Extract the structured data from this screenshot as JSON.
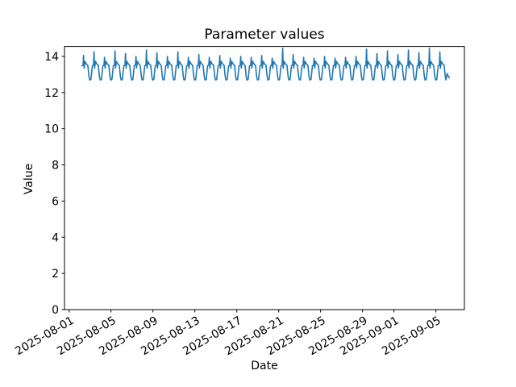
{
  "chart_data": {
    "type": "line",
    "title": "Parameter values",
    "xlabel": "Date",
    "ylabel": "Value",
    "legend": null,
    "grid": false,
    "line_color": "#1f77b4",
    "axis_color": "#000000",
    "background_color": "#ffffff",
    "ylim": [
      0,
      14.55
    ],
    "yticks": [
      0,
      2,
      4,
      6,
      8,
      10,
      12,
      14
    ],
    "x_epoch": "2025-08-01",
    "xlim_days": [
      -0.44,
      37.72
    ],
    "xticks": [
      {
        "label": "2025-08-01",
        "day": 0
      },
      {
        "label": "2025-08-05",
        "day": 4
      },
      {
        "label": "2025-08-09",
        "day": 8
      },
      {
        "label": "2025-08-13",
        "day": 12
      },
      {
        "label": "2025-08-17",
        "day": 16
      },
      {
        "label": "2025-08-21",
        "day": 20
      },
      {
        "label": "2025-08-25",
        "day": 24
      },
      {
        "label": "2025-08-29",
        "day": 28
      },
      {
        "label": "2025-09-01",
        "day": 31
      },
      {
        "label": "2025-09-05",
        "day": 35
      }
    ],
    "series": {
      "name": "parameter-values",
      "description": "Daily repeating cycle: trough ~12.7 at midnight, shoulder ~13.5, sharp morning spike to daily peak, midday plateau ~13.5-13.7, evening drop back to trough",
      "start_day_offset": 1,
      "first_day_skip_before_frac": 0.18,
      "peak_token": "P",
      "daily_pattern": [
        [
          0.0,
          12.7
        ],
        [
          0.08,
          12.72
        ],
        [
          0.22,
          13.48
        ],
        [
          0.33,
          13.52
        ],
        [
          0.38,
          "P"
        ],
        [
          0.43,
          13.35
        ],
        [
          0.52,
          13.72
        ],
        [
          0.63,
          13.6
        ],
        [
          0.79,
          13.5
        ],
        [
          0.89,
          12.92
        ],
        [
          0.96,
          12.7
        ]
      ],
      "daily_peaks": [
        14.05,
        14.25,
        13.95,
        14.3,
        14.15,
        14.0,
        14.35,
        14.2,
        14.0,
        14.25,
        13.95,
        14.1,
        13.95,
        14.05,
        13.9,
        14.0,
        13.95,
        14.05,
        13.9,
        14.45,
        14.1,
        13.95,
        13.9,
        14.0,
        13.9,
        13.95,
        14.0,
        14.4,
        14.15,
        14.3,
        14.1,
        14.35,
        14.2,
        14.45,
        14.25
      ],
      "tail_points": [
        [
          36.08,
          13.05
        ],
        [
          36.18,
          12.9
        ],
        [
          36.28,
          12.82
        ]
      ],
      "value_min": 12.7,
      "value_max": 14.45
    }
  }
}
